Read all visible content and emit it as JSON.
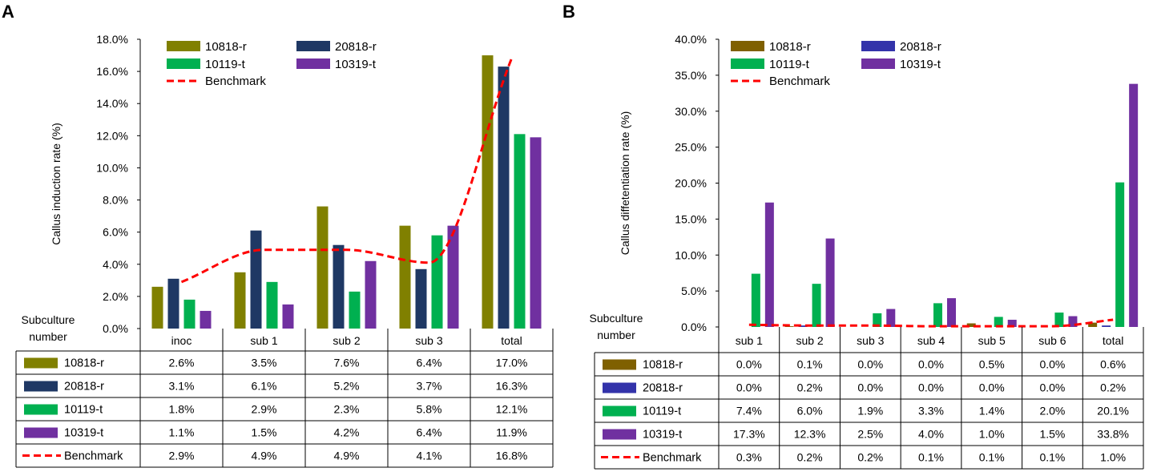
{
  "panels": [
    {
      "letter": "A",
      "chart_data": {
        "type": "bar",
        "ylabel": "Callus induction rate (%)",
        "xlabel": "Subculture number",
        "ylim": [
          0,
          18
        ],
        "yticks": [
          "0.0%",
          "2.0%",
          "4.0%",
          "6.0%",
          "8.0%",
          "10.0%",
          "12.0%",
          "14.0%",
          "16.0%",
          "18.0%"
        ],
        "categories": [
          "inoc",
          "sub 1",
          "sub 2",
          "sub 3",
          "total"
        ],
        "series": [
          {
            "name": "10818-r",
            "color": "#808000",
            "values": [
              2.6,
              3.5,
              7.6,
              6.4,
              17.0
            ],
            "labels": [
              "2.6%",
              "3.5%",
              "7.6%",
              "6.4%",
              "17.0%"
            ]
          },
          {
            "name": "20818-r",
            "color": "#1f3864",
            "values": [
              3.1,
              6.1,
              5.2,
              3.7,
              16.3
            ],
            "labels": [
              "3.1%",
              "6.1%",
              "5.2%",
              "3.7%",
              "16.3%"
            ]
          },
          {
            "name": "10119-t",
            "color": "#00b050",
            "values": [
              1.8,
              2.9,
              2.3,
              5.8,
              12.1
            ],
            "labels": [
              "1.8%",
              "2.9%",
              "2.3%",
              "5.8%",
              "12.1%"
            ]
          },
          {
            "name": "10319-t",
            "color": "#7030a0",
            "values": [
              1.1,
              1.5,
              4.2,
              6.4,
              11.9
            ],
            "labels": [
              "1.1%",
              "1.5%",
              "4.2%",
              "6.4%",
              "11.9%"
            ]
          }
        ],
        "benchmark": {
          "name": "Benchmark",
          "color": "#ff0000",
          "values": [
            2.9,
            4.9,
            4.9,
            4.1,
            16.8
          ],
          "labels": [
            "2.9%",
            "4.9%",
            "4.9%",
            "4.1%",
            "16.8%"
          ]
        }
      }
    },
    {
      "letter": "B",
      "chart_data": {
        "type": "bar",
        "ylabel": "Callus diffetentiation rate (%)",
        "xlabel": "Subculture number",
        "ylim": [
          0,
          40
        ],
        "yticks": [
          "0.0%",
          "5.0%",
          "10.0%",
          "15.0%",
          "20.0%",
          "25.0%",
          "30.0%",
          "35.0%",
          "40.0%"
        ],
        "categories": [
          "sub 1",
          "sub 2",
          "sub 3",
          "sub 4",
          "sub 5",
          "sub 6",
          "total"
        ],
        "series": [
          {
            "name": "10818-r",
            "color": "#7f6000",
            "values": [
              0.0,
              0.1,
              0.0,
              0.0,
              0.5,
              0.0,
              0.6
            ],
            "labels": [
              "0.0%",
              "0.1%",
              "0.0%",
              "0.0%",
              "0.5%",
              "0.0%",
              "0.6%"
            ]
          },
          {
            "name": "20818-r",
            "color": "#3333aa",
            "values": [
              0.0,
              0.2,
              0.0,
              0.0,
              0.0,
              0.0,
              0.2
            ],
            "labels": [
              "0.0%",
              "0.2%",
              "0.0%",
              "0.0%",
              "0.0%",
              "0.0%",
              "0.2%"
            ]
          },
          {
            "name": "10119-t",
            "color": "#00b050",
            "values": [
              7.4,
              6.0,
              1.9,
              3.3,
              1.4,
              2.0,
              20.1
            ],
            "labels": [
              "7.4%",
              "6.0%",
              "1.9%",
              "3.3%",
              "1.4%",
              "2.0%",
              "20.1%"
            ]
          },
          {
            "name": "10319-t",
            "color": "#7030a0",
            "values": [
              17.3,
              12.3,
              2.5,
              4.0,
              1.0,
              1.5,
              33.8
            ],
            "labels": [
              "17.3%",
              "12.3%",
              "2.5%",
              "4.0%",
              "1.0%",
              "1.5%",
              "33.8%"
            ]
          }
        ],
        "benchmark": {
          "name": "Benchmark",
          "color": "#ff0000",
          "values": [
            0.3,
            0.2,
            0.2,
            0.1,
            0.1,
            0.1,
            1.0
          ],
          "labels": [
            "0.3%",
            "0.2%",
            "0.2%",
            "0.1%",
            "0.1%",
            "0.1%",
            "1.0%"
          ]
        }
      }
    }
  ]
}
